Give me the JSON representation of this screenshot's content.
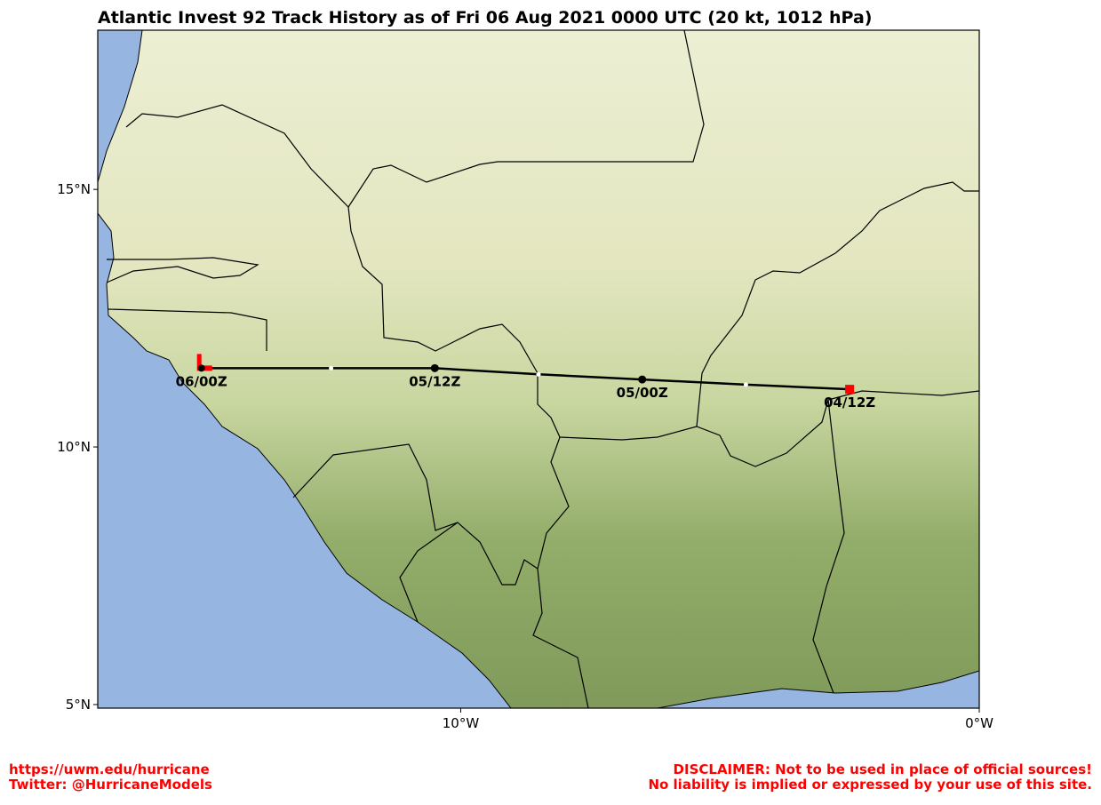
{
  "map": {
    "title": "Atlantic Invest 92 Track History as of Fri 06 Aug 2021 0000 UTC (20 kt, 1012 hPa)",
    "xlim": [
      -17,
      0
    ],
    "ylim": [
      4.93,
      18.09
    ],
    "xticks": [
      {
        "value": -10,
        "label": "10°W"
      },
      {
        "value": 0,
        "label": "0°W"
      }
    ],
    "yticks": [
      {
        "value": 5,
        "label": "5°N"
      },
      {
        "value": 10,
        "label": "10°N"
      },
      {
        "value": 15,
        "label": "15°N"
      }
    ],
    "track": {
      "lon": [
        -2.5,
        -4.5,
        -6.5,
        -8.5,
        -10.5,
        -12.5,
        -15.0
      ],
      "lat": [
        11.12,
        11.21,
        11.31,
        11.41,
        11.53,
        11.53,
        11.53
      ],
      "labels": [
        "04/12Z",
        null,
        "05/00Z",
        null,
        "05/12Z",
        null,
        "06/00Z"
      ]
    },
    "footer_left": [
      "https://uwm.edu/hurricane",
      "Twitter: @HurricaneModels"
    ],
    "footer_right": [
      "DISCLAIMER: Not to be used in place of official sources!",
      "No liability is implied or expressed by your use of this site."
    ]
  }
}
